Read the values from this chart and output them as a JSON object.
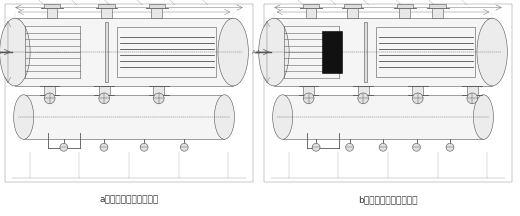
{
  "fig_width": 5.2,
  "fig_height": 2.16,
  "dpi": 100,
  "background_color": "#ffffff",
  "left_label": "a）优化升级前两腹排液",
  "right_label": "b）优化升级后三腹排液",
  "label_fontsize": 6.5,
  "label_color": "#333333",
  "line_color": "#555555",
  "dim_color": "#666666",
  "lw": 0.4
}
